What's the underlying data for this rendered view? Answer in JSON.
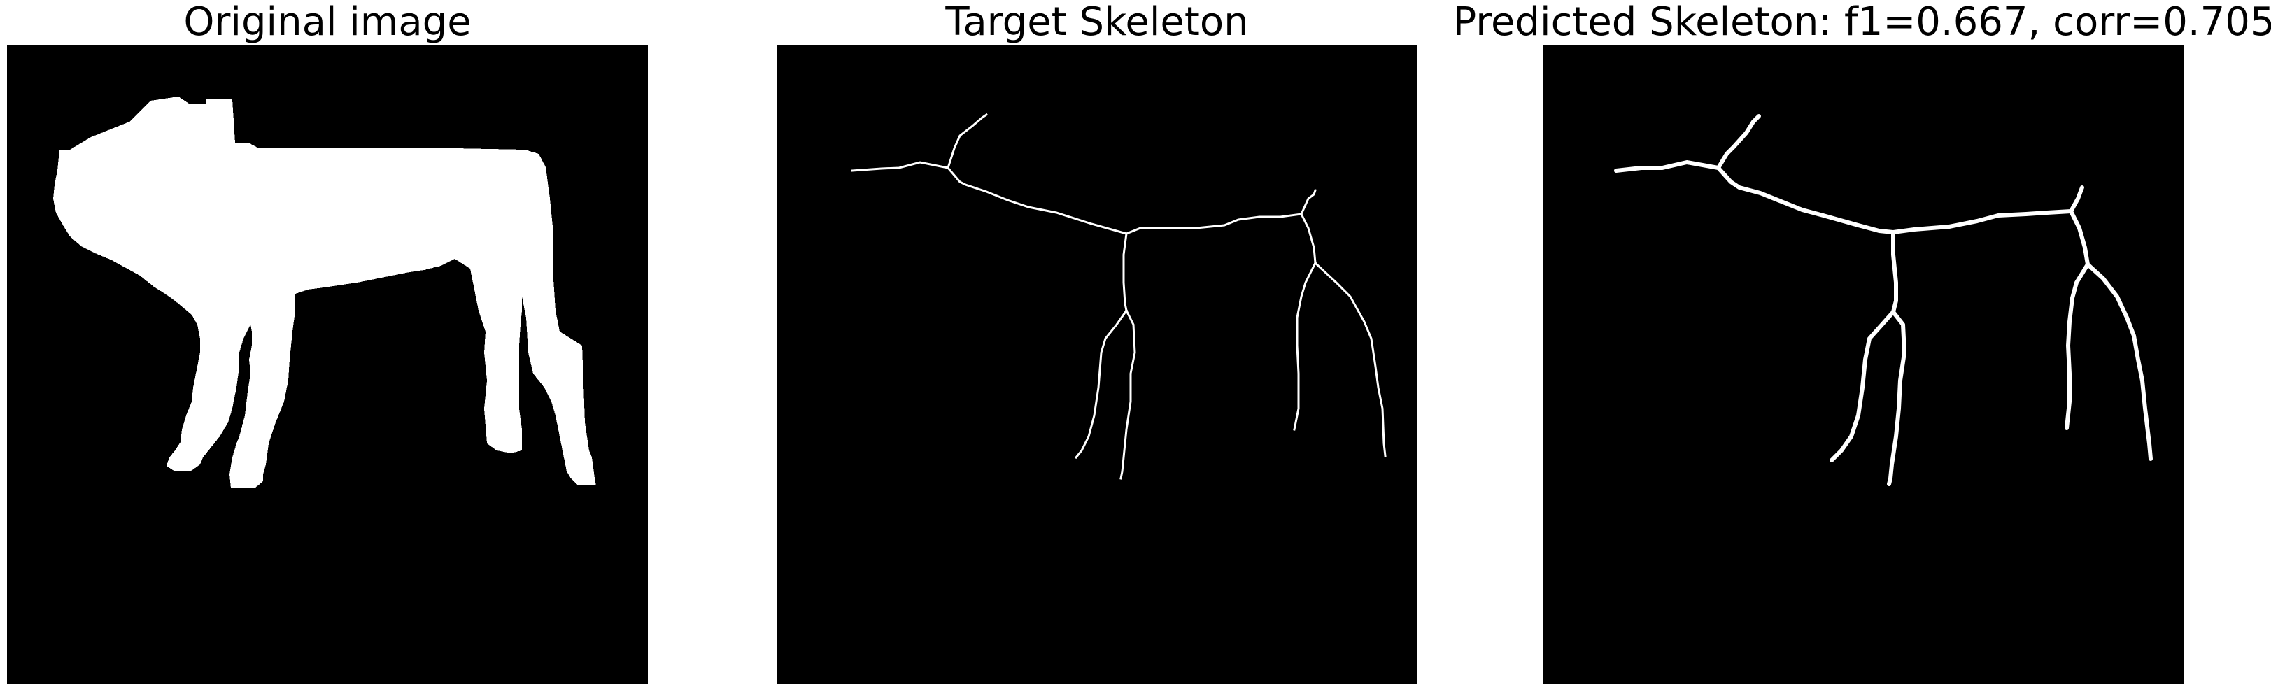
{
  "panels": [
    {
      "title": "Original image"
    },
    {
      "title": "Target Skeleton"
    },
    {
      "title": "Predicted Skeleton: f1=0.667, corr=0.705"
    }
  ],
  "colors": {
    "background": "#000000",
    "foreground": "#ffffff",
    "page": "#ffffff"
  }
}
